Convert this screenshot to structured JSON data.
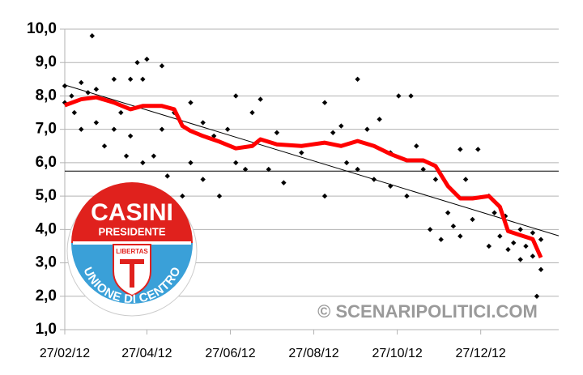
{
  "chart_data": {
    "type": "scatter",
    "xlim": [
      "2012-02-27",
      "2013-02-22"
    ],
    "ylim": [
      1,
      10
    ],
    "yticks": [
      {
        "value": 1,
        "label": "1,0"
      },
      {
        "value": 2,
        "label": "2,0"
      },
      {
        "value": 3,
        "label": "3,0"
      },
      {
        "value": 4,
        "label": "4,0"
      },
      {
        "value": 5,
        "label": "5,0"
      },
      {
        "value": 6,
        "label": "6,0"
      },
      {
        "value": 7,
        "label": "7,0"
      },
      {
        "value": 8,
        "label": "8,0"
      },
      {
        "value": 9,
        "label": "9,0"
      },
      {
        "value": 10,
        "label": "10,0"
      }
    ],
    "xticks": [
      {
        "value": "2012-02-27",
        "label": "27/02/12"
      },
      {
        "value": "2012-04-27",
        "label": "27/04/12"
      },
      {
        "value": "2012-06-27",
        "label": "27/06/12"
      },
      {
        "value": "2012-08-27",
        "label": "27/08/12"
      },
      {
        "value": "2012-10-27",
        "label": "27/10/12"
      },
      {
        "value": "2012-12-27",
        "label": "27/12/12"
      }
    ],
    "grid": true,
    "hline": 5.75,
    "watermark": "© SCENARIPOLITICI.COM",
    "logo": {
      "top": "CASINI",
      "sub": "PRESIDENTE",
      "shield": "LIBERTAS",
      "arc": "UNIONE DI CENTRO"
    },
    "series": [
      {
        "type": "scatter",
        "color": "#000000",
        "x": [
          "2012-02-27",
          "2012-02-27",
          "2012-03-03",
          "2012-03-05",
          "2012-03-10",
          "2012-03-10",
          "2012-03-15",
          "2012-03-18",
          "2012-03-21",
          "2012-03-21",
          "2012-03-27",
          "2012-04-03",
          "2012-04-03",
          "2012-04-08",
          "2012-04-12",
          "2012-04-15",
          "2012-04-15",
          "2012-04-20",
          "2012-04-24",
          "2012-04-24",
          "2012-04-27",
          "2012-05-02",
          "2012-05-08",
          "2012-05-08",
          "2012-05-12",
          "2012-05-17",
          "2012-05-23",
          "2012-05-29",
          "2012-05-29",
          "2012-06-07",
          "2012-06-07",
          "2012-06-15",
          "2012-06-19",
          "2012-06-25",
          "2012-07-01",
          "2012-07-01",
          "2012-07-08",
          "2012-07-13",
          "2012-07-19",
          "2012-07-25",
          "2012-07-31",
          "2012-08-05",
          "2012-08-18",
          "2012-09-04",
          "2012-09-04",
          "2012-09-10",
          "2012-09-16",
          "2012-09-20",
          "2012-09-28",
          "2012-09-28",
          "2012-10-05",
          "2012-10-10",
          "2012-10-14",
          "2012-10-22",
          "2012-10-22",
          "2012-10-28",
          "2012-11-03",
          "2012-11-06",
          "2012-11-10",
          "2012-11-15",
          "2012-11-20",
          "2012-11-24",
          "2012-11-28",
          "2012-12-03",
          "2012-12-07",
          "2012-12-12",
          "2012-12-12",
          "2012-12-16",
          "2012-12-21",
          "2012-12-25",
          "2013-01-02",
          "2013-01-02",
          "2013-01-06",
          "2013-01-10",
          "2013-01-14",
          "2013-01-16",
          "2013-01-20",
          "2013-01-25",
          "2013-01-25",
          "2013-01-29",
          "2013-02-03",
          "2013-02-03",
          "2013-02-06",
          "2013-02-09",
          "2013-02-09"
        ],
        "values": [
          8.3,
          7.8,
          8.0,
          7.5,
          8.4,
          7.0,
          8.1,
          9.8,
          7.2,
          8.2,
          6.5,
          8.5,
          7.0,
          7.5,
          6.2,
          8.5,
          6.8,
          9.0,
          8.5,
          6.0,
          9.1,
          6.2,
          8.9,
          7.0,
          5.6,
          7.5,
          5.0,
          7.8,
          6.0,
          5.5,
          7.2,
          6.8,
          5.0,
          7.0,
          6.0,
          8.0,
          5.8,
          7.5,
          7.9,
          5.8,
          6.9,
          5.4,
          6.3,
          7.8,
          5.0,
          6.9,
          7.1,
          6.0,
          8.5,
          5.8,
          7.0,
          5.5,
          7.3,
          6.3,
          5.3,
          8.0,
          5.0,
          8.0,
          6.5,
          5.8,
          4.0,
          5.5,
          3.7,
          4.5,
          4.1,
          6.4,
          3.8,
          5.5,
          4.3,
          6.4,
          3.5,
          5.0,
          4.5,
          3.8,
          4.4,
          3.4,
          3.6,
          4.0,
          3.1,
          3.5,
          3.9,
          3.2,
          2.0,
          2.8,
          3.7
        ]
      },
      {
        "type": "line",
        "color": "#ff0000",
        "x": [
          "2012-02-27",
          "2012-03-10",
          "2012-03-21",
          "2012-04-03",
          "2012-04-15",
          "2012-04-24",
          "2012-05-08",
          "2012-05-17",
          "2012-05-23",
          "2012-05-29",
          "2012-06-07",
          "2012-06-19",
          "2012-07-01",
          "2012-07-13",
          "2012-07-19",
          "2012-07-31",
          "2012-08-18",
          "2012-09-04",
          "2012-09-16",
          "2012-09-28",
          "2012-10-10",
          "2012-10-22",
          "2012-11-03",
          "2012-11-15",
          "2012-11-24",
          "2012-12-03",
          "2012-12-12",
          "2012-12-21",
          "2013-01-02",
          "2013-01-10",
          "2013-01-16",
          "2013-01-25",
          "2013-02-03",
          "2013-02-09"
        ],
        "values": [
          7.72,
          7.9,
          7.96,
          7.8,
          7.6,
          7.7,
          7.7,
          7.6,
          7.1,
          6.95,
          6.8,
          6.63,
          6.43,
          6.5,
          6.7,
          6.55,
          6.5,
          6.6,
          6.5,
          6.65,
          6.5,
          6.26,
          6.07,
          6.07,
          5.9,
          5.3,
          4.93,
          4.93,
          5.0,
          4.68,
          3.95,
          3.83,
          3.71,
          3.16
        ]
      },
      {
        "type": "trend",
        "color": "#000000",
        "x": [
          "2012-02-27",
          "2013-02-22"
        ],
        "values": [
          8.33,
          3.81
        ]
      }
    ]
  }
}
